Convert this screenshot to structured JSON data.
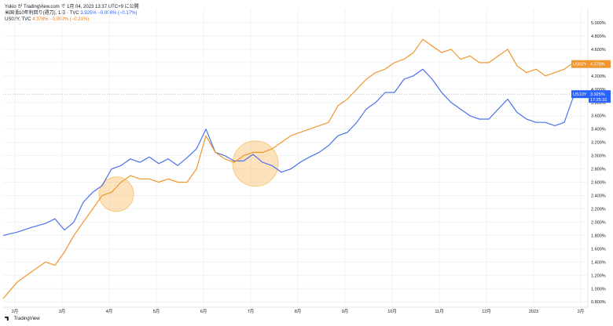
{
  "header": {
    "publisher": "Yukio が TradingView.com で 1月 04, 2023 13:37 UTC+9 に公開"
  },
  "legend": [
    {
      "name": "米国債10年利回り(週刀)",
      "meta": "1日 · TVC",
      "value": "3.925%",
      "change": "−0.006% (−0.17%)",
      "color": "#4a72e8"
    },
    {
      "name": "US02Y",
      "meta": "TVC",
      "value": "4.378%",
      "change": "−0.009% (−0.21%)",
      "color": "#f0962e"
    }
  ],
  "brand": {
    "label": "TradingView"
  },
  "price_tags": {
    "orange": {
      "label": "US02Y",
      "value": "4.378%"
    },
    "blue": {
      "label": "US10Y",
      "value": "3.925%",
      "sub": "17:25:31"
    }
  },
  "chart_data": {
    "type": "line",
    "yticks": [
      "5.000%",
      "4.800%",
      "4.600%",
      "4.400%",
      "4.200%",
      "4.000%",
      "3.800%",
      "3.600%",
      "3.400%",
      "3.200%",
      "3.000%",
      "2.800%",
      "2.600%",
      "2.400%",
      "2.200%",
      "2.000%",
      "1.800%",
      "1.600%",
      "1.400%",
      "1.200%",
      "1.000%",
      "0.800%"
    ],
    "ylim": [
      0.72,
      5.2
    ],
    "xticks": [
      "2月",
      "3月",
      "4月",
      "5月",
      "6月",
      "7月",
      "8月",
      "9月",
      "10月",
      "11月",
      "12月",
      "2023",
      "2月"
    ],
    "xlim": [
      0,
      12.4
    ],
    "xtick_positions": [
      0.25,
      1.25,
      2.25,
      3.25,
      4.25,
      5.25,
      6.25,
      7.25,
      8.25,
      9.25,
      10.25,
      11.25,
      12.25
    ],
    "series": [
      {
        "name": "US10Y",
        "color": "#4a72e8",
        "x": [
          0.0,
          0.3,
          0.6,
          0.9,
          1.1,
          1.3,
          1.5,
          1.7,
          1.9,
          2.1,
          2.3,
          2.5,
          2.7,
          2.9,
          3.1,
          3.3,
          3.5,
          3.7,
          3.9,
          4.1,
          4.3,
          4.5,
          4.7,
          4.9,
          5.1,
          5.3,
          5.5,
          5.7,
          5.9,
          6.1,
          6.3,
          6.5,
          6.7,
          6.9,
          7.1,
          7.3,
          7.5,
          7.7,
          7.9,
          8.1,
          8.3,
          8.5,
          8.7,
          8.9,
          9.1,
          9.3,
          9.5,
          9.7,
          9.9,
          10.1,
          10.3,
          10.5,
          10.7,
          10.9,
          11.1,
          11.3,
          11.5,
          11.7,
          11.9,
          12.1
        ],
        "values": [
          1.8,
          1.85,
          1.92,
          1.98,
          2.05,
          1.88,
          2.0,
          2.3,
          2.45,
          2.55,
          2.8,
          2.85,
          2.95,
          2.9,
          2.98,
          2.88,
          2.95,
          2.85,
          2.97,
          3.1,
          3.4,
          3.05,
          3.0,
          2.92,
          2.92,
          3.02,
          2.9,
          2.85,
          2.75,
          2.8,
          2.9,
          2.98,
          3.05,
          3.15,
          3.3,
          3.35,
          3.5,
          3.7,
          3.8,
          3.95,
          3.95,
          4.15,
          4.2,
          4.3,
          4.15,
          3.95,
          3.8,
          3.7,
          3.6,
          3.55,
          3.55,
          3.7,
          3.85,
          3.65,
          3.55,
          3.5,
          3.5,
          3.45,
          3.5,
          3.9
        ]
      },
      {
        "name": "US02Y",
        "color": "#f0962e",
        "x": [
          0.0,
          0.3,
          0.6,
          0.9,
          1.1,
          1.3,
          1.5,
          1.7,
          1.9,
          2.1,
          2.3,
          2.5,
          2.7,
          2.9,
          3.1,
          3.3,
          3.5,
          3.7,
          3.9,
          4.1,
          4.3,
          4.5,
          4.7,
          4.9,
          5.1,
          5.3,
          5.5,
          5.7,
          5.9,
          6.1,
          6.3,
          6.5,
          6.7,
          6.9,
          7.1,
          7.3,
          7.5,
          7.7,
          7.9,
          8.1,
          8.3,
          8.5,
          8.7,
          8.9,
          9.1,
          9.3,
          9.5,
          9.7,
          9.9,
          10.1,
          10.3,
          10.5,
          10.7,
          10.9,
          11.1,
          11.3,
          11.5,
          11.7,
          11.9,
          12.1
        ],
        "values": [
          0.85,
          1.1,
          1.25,
          1.4,
          1.35,
          1.55,
          1.8,
          2.0,
          2.2,
          2.4,
          2.45,
          2.6,
          2.7,
          2.65,
          2.65,
          2.6,
          2.65,
          2.6,
          2.6,
          2.8,
          3.3,
          3.05,
          2.95,
          2.9,
          3.0,
          3.05,
          3.05,
          3.1,
          3.2,
          3.3,
          3.35,
          3.4,
          3.45,
          3.5,
          3.75,
          3.85,
          4.0,
          4.15,
          4.25,
          4.3,
          4.4,
          4.45,
          4.55,
          4.75,
          4.65,
          4.55,
          4.6,
          4.45,
          4.5,
          4.4,
          4.4,
          4.5,
          4.6,
          4.35,
          4.25,
          4.3,
          4.2,
          4.25,
          4.3,
          4.4
        ]
      }
    ],
    "annotations": [
      {
        "shape": "circle",
        "x": 2.4,
        "y": 2.42,
        "color": "#f5b041"
      },
      {
        "shape": "circle",
        "x": 5.35,
        "y": 2.88,
        "color": "#f5b041"
      }
    ],
    "grid": true,
    "current_price_line": 3.925
  }
}
